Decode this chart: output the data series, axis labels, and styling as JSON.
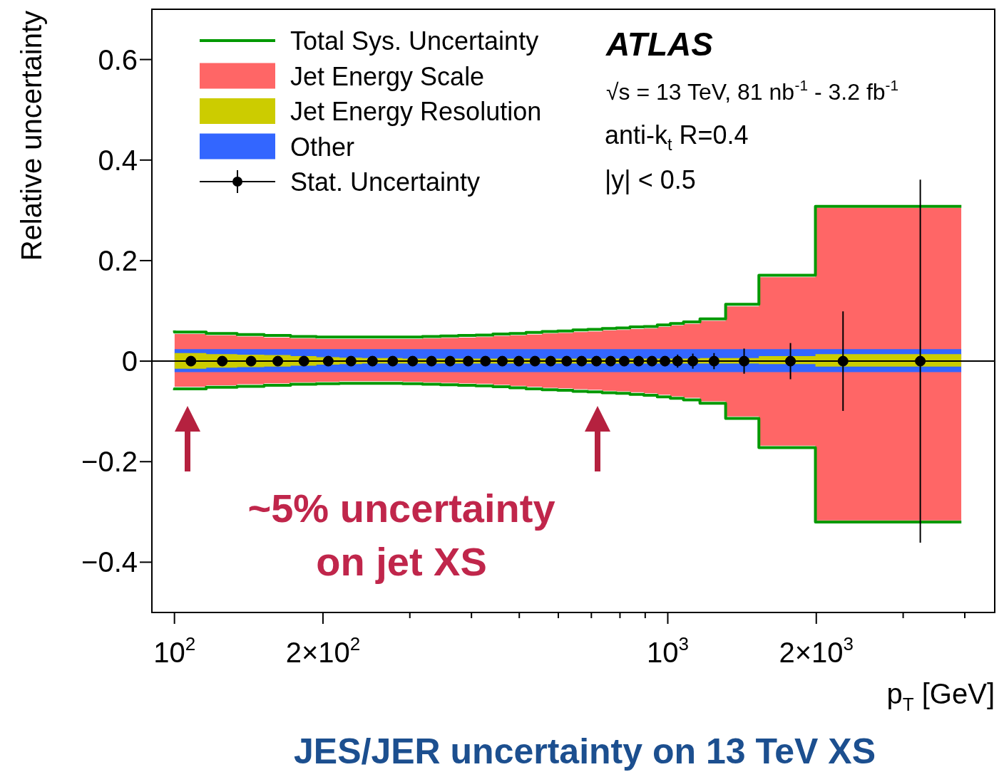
{
  "chart_data": {
    "type": "step",
    "xlabel": "p$_{T}$ [GeV]",
    "ylabel": "Relative uncertainty",
    "annotations": [
      "ATLAS",
      "√s = 13 TeV, 81 nb$^{-1}$ - 3.2 fb$^{-1}$",
      "anti-k$_{t}$ R=0.4",
      "|y| < 0.5",
      "~5% uncertainty\non jet XS",
      "JES/JER uncertainty on 13 TeV XS"
    ],
    "log": "x",
    "xlim": [
      90,
      4600
    ],
    "ylim": [
      -0.5,
      0.7
    ],
    "xticks": [
      {
        "value": 100,
        "label": "10$^{2}$"
      },
      {
        "value": 200,
        "label": "2×10$^{2}$"
      },
      {
        "value": 300,
        "label": null
      },
      {
        "value": 400,
        "label": null
      },
      {
        "value": 500,
        "label": null
      },
      {
        "value": 600,
        "label": null
      },
      {
        "value": 700,
        "label": null
      },
      {
        "value": 800,
        "label": null
      },
      {
        "value": 900,
        "label": null
      },
      {
        "value": 1000,
        "label": "10$^{3}$"
      },
      {
        "value": 2000,
        "label": "2×10$^{3}$"
      },
      {
        "value": 3000,
        "label": null
      },
      {
        "value": 4000,
        "label": null
      }
    ],
    "yticks": [
      {
        "value": -0.4,
        "label": "−0.4"
      },
      {
        "value": -0.2,
        "label": "−0.2"
      },
      0,
      0.2,
      0.4,
      0.6
    ],
    "grid": false,
    "legend": "top left",
    "ref_lines": [
      {
        "axis": "y",
        "value": 0,
        "color": "#000000"
      }
    ],
    "series": [
      {
        "name": "Total Sys. Uncertainty",
        "type": "step",
        "color": "#009900",
        "x": [
          100,
          116,
          134,
          152,
          172,
          194,
          216,
          240,
          264,
          290,
          318,
          346,
          376,
          408,
          442,
          478,
          516,
          556,
          598,
          642,
          688,
          736,
          786,
          838,
          894,
          952,
          1012,
          1076,
          1162,
          1310,
          1530,
          1992,
          2500,
          3937
        ],
        "values": [
          0.061,
          0.058,
          0.055,
          0.053,
          0.051,
          0.049,
          0.048,
          0.048,
          0.048,
          0.048,
          0.048,
          0.049,
          0.05,
          0.051,
          0.052,
          0.054,
          0.055,
          0.057,
          0.059,
          0.06,
          0.062,
          0.063,
          0.065,
          0.066,
          0.068,
          0.069,
          0.072,
          0.075,
          0.078,
          0.084,
          0.113,
          0.171,
          0.308,
          0.308
        ]
      },
      {
        "type": "step",
        "color": "#009900",
        "x": [
          100,
          116,
          134,
          152,
          172,
          194,
          216,
          240,
          264,
          290,
          318,
          346,
          376,
          408,
          442,
          478,
          516,
          556,
          598,
          642,
          688,
          736,
          786,
          838,
          894,
          952,
          1012,
          1076,
          1162,
          1310,
          1530,
          1992,
          2500,
          3937
        ],
        "values": [
          -0.058,
          -0.055,
          -0.052,
          -0.05,
          -0.048,
          -0.046,
          -0.045,
          -0.044,
          -0.044,
          -0.044,
          -0.045,
          -0.046,
          -0.047,
          -0.048,
          -0.049,
          -0.051,
          -0.053,
          -0.055,
          -0.057,
          -0.058,
          -0.06,
          -0.061,
          -0.063,
          -0.064,
          -0.066,
          -0.068,
          -0.071,
          -0.074,
          -0.077,
          -0.084,
          -0.114,
          -0.172,
          -0.32,
          -0.32
        ]
      },
      {
        "name": "Jet Energy Scale",
        "type": "step",
        "color": "#ff6666",
        "x": [
          100,
          116,
          134,
          152,
          172,
          194,
          216,
          240,
          264,
          290,
          318,
          346,
          376,
          408,
          442,
          478,
          516,
          556,
          598,
          642,
          688,
          736,
          786,
          838,
          894,
          952,
          1012,
          1076,
          1162,
          1310,
          1530,
          1992,
          2500,
          3937
        ],
        "values": [
          null,
          null,
          null,
          null,
          null,
          null,
          null,
          null,
          null,
          null,
          null,
          null,
          null,
          null,
          null,
          null,
          null,
          null,
          null,
          null,
          null,
          null,
          null,
          null,
          null,
          null,
          null,
          null,
          null,
          null,
          null,
          null,
          null,
          null
        ],
        "upper": [
          0.057,
          0.054,
          0.051,
          0.049,
          0.047,
          0.045,
          0.044,
          0.044,
          0.044,
          0.044,
          0.044,
          0.045,
          0.046,
          0.047,
          0.048,
          0.05,
          0.051,
          0.053,
          0.055,
          0.056,
          0.058,
          0.059,
          0.061,
          0.062,
          0.064,
          0.065,
          0.068,
          0.071,
          0.074,
          0.08,
          0.109,
          0.167,
          0.305,
          0.305
        ],
        "lower": [
          -0.054,
          -0.051,
          -0.048,
          -0.046,
          -0.044,
          -0.042,
          -0.041,
          -0.04,
          -0.04,
          -0.04,
          -0.041,
          -0.042,
          -0.043,
          -0.044,
          -0.045,
          -0.047,
          -0.049,
          -0.051,
          -0.053,
          -0.054,
          -0.056,
          -0.057,
          -0.059,
          -0.06,
          -0.062,
          -0.064,
          -0.067,
          -0.07,
          -0.073,
          -0.08,
          -0.11,
          -0.168,
          -0.317,
          -0.317
        ]
      },
      {
        "name": "Jet Energy Resolution",
        "type": "step",
        "color": "#cccc00",
        "x": [
          100,
          116,
          134,
          152,
          172,
          194,
          216,
          240,
          264,
          290,
          318,
          346,
          376,
          408,
          442,
          478,
          516,
          556,
          598,
          642,
          688,
          736,
          786,
          838,
          894,
          952,
          1012,
          1076,
          1162,
          1310,
          1530,
          1992,
          2500,
          3937
        ],
        "values": [
          null,
          null,
          null,
          null,
          null,
          null,
          null,
          null,
          null,
          null,
          null,
          null,
          null,
          null,
          null,
          null,
          null,
          null,
          null,
          null,
          null,
          null,
          null,
          null,
          null,
          null,
          null,
          null,
          null,
          null,
          null,
          null,
          null,
          null
        ],
        "upper": [
          0.019,
          0.016,
          0.014,
          0.013,
          0.012,
          0.01,
          0.008,
          0.007,
          0.006,
          0.006,
          0.005,
          0.005,
          0.005,
          0.005,
          0.005,
          0.005,
          0.005,
          0.005,
          0.005,
          0.005,
          0.005,
          0.005,
          0.005,
          0.005,
          0.005,
          0.005,
          0.005,
          0.005,
          0.005,
          0.006,
          0.006,
          0.01,
          0.014,
          0.014
        ],
        "lower": [
          -0.017,
          -0.015,
          -0.013,
          -0.012,
          -0.011,
          -0.009,
          -0.007,
          -0.006,
          -0.005,
          -0.005,
          -0.005,
          -0.005,
          -0.005,
          -0.005,
          -0.005,
          -0.005,
          -0.005,
          -0.005,
          -0.005,
          -0.005,
          -0.005,
          -0.005,
          -0.005,
          -0.005,
          -0.005,
          -0.005,
          -0.005,
          -0.005,
          -0.005,
          -0.005,
          -0.005,
          -0.006,
          -0.011,
          -0.011
        ]
      },
      {
        "name": "Other",
        "type": "step",
        "color": "#3366ff",
        "x": [
          100,
          116,
          134,
          152,
          172,
          194,
          216,
          240,
          264,
          290,
          318,
          346,
          376,
          408,
          442,
          478,
          516,
          556,
          598,
          642,
          688,
          736,
          786,
          838,
          894,
          952,
          1012,
          1076,
          1162,
          1310,
          1530,
          1992,
          2500,
          3937
        ],
        "values": [
          null,
          null,
          null,
          null,
          null,
          null,
          null,
          null,
          null,
          null,
          null,
          null,
          null,
          null,
          null,
          null,
          null,
          null,
          null,
          null,
          null,
          null,
          null,
          null,
          null,
          null,
          null,
          null,
          null,
          null,
          null,
          null,
          null,
          null
        ],
        "upper": [
          0.025,
          0.024,
          0.024,
          0.024,
          0.024,
          0.024,
          0.024,
          0.024,
          0.024,
          0.024,
          0.024,
          0.024,
          0.024,
          0.024,
          0.024,
          0.024,
          0.024,
          0.024,
          0.024,
          0.024,
          0.024,
          0.024,
          0.024,
          0.024,
          0.024,
          0.024,
          0.024,
          0.024,
          0.024,
          0.024,
          0.024,
          0.024,
          0.024,
          0.024
        ],
        "lower": [
          -0.019,
          -0.022,
          -0.022,
          -0.022,
          -0.022,
          -0.022,
          -0.022,
          -0.022,
          -0.022,
          -0.022,
          -0.022,
          -0.022,
          -0.022,
          -0.022,
          -0.022,
          -0.022,
          -0.022,
          -0.022,
          -0.022,
          -0.022,
          -0.022,
          -0.022,
          -0.022,
          -0.022,
          -0.022,
          -0.022,
          -0.022,
          -0.022,
          -0.022,
          -0.022,
          -0.022,
          -0.022,
          -0.022,
          -0.022
        ]
      },
      {
        "name": "Stat. Uncertainty",
        "type": "scatter",
        "marker": "circle",
        "color": "#000000",
        "x": [
          108,
          125,
          143,
          162,
          183,
          205,
          228,
          252,
          277,
          304,
          332,
          362,
          394,
          427,
          462,
          499,
          538,
          579,
          624,
          669,
          717,
          766,
          816,
          873,
          929,
          987,
          1047,
          1124,
          1241,
          1428,
          1773,
          2266,
          3250
        ],
        "values": [
          0,
          0,
          0,
          0,
          0,
          0,
          0,
          0,
          0,
          0,
          0,
          0,
          0,
          0,
          0,
          0,
          0,
          0,
          0,
          0,
          0,
          0,
          0,
          0,
          0,
          0,
          0,
          0,
          0,
          0,
          0,
          0,
          0
        ],
        "errors": [
          null,
          null,
          null,
          null,
          null,
          null,
          null,
          null,
          null,
          null,
          null,
          null,
          null,
          null,
          null,
          null,
          null,
          null,
          null,
          null,
          null,
          null,
          null,
          null,
          0.008,
          0.01,
          0.013,
          0.015,
          0.016,
          0.025,
          0.036,
          0.099,
          0.361
        ]
      }
    ]
  }
}
